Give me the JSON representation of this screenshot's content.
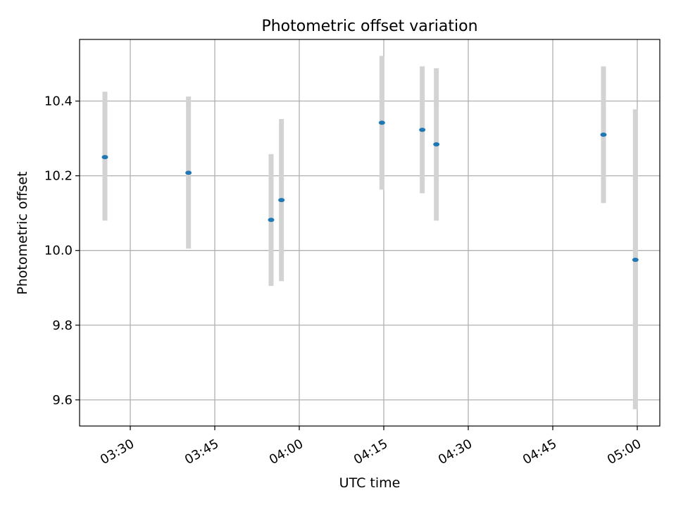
{
  "chart_data": {
    "type": "scatter",
    "title": "Photometric offset variation",
    "xlabel": "UTC time",
    "ylabel": "Photometric offset",
    "x_type": "time",
    "xlim": [
      "03:21",
      "05:04"
    ],
    "ylim": [
      9.53,
      10.565
    ],
    "grid": true,
    "x_ticks": [
      "03:30",
      "03:45",
      "04:00",
      "04:15",
      "04:30",
      "04:45",
      "05:00"
    ],
    "y_ticks": [
      9.6,
      9.8,
      10.0,
      10.2,
      10.4
    ],
    "y_tick_labels": [
      "9.6",
      "9.8",
      "10.0",
      "10.2",
      "10.4"
    ],
    "points": [
      {
        "time": "03:25:30",
        "y": 10.25,
        "err_low": 10.08,
        "err_high": 10.425
      },
      {
        "time": "03:40:20",
        "y": 10.208,
        "err_low": 10.005,
        "err_high": 10.412
      },
      {
        "time": "03:55:00",
        "y": 10.082,
        "err_low": 9.905,
        "err_high": 10.258
      },
      {
        "time": "03:56:50",
        "y": 10.135,
        "err_low": 9.918,
        "err_high": 10.352
      },
      {
        "time": "04:14:40",
        "y": 10.342,
        "err_low": 10.163,
        "err_high": 10.521
      },
      {
        "time": "04:21:50",
        "y": 10.323,
        "err_low": 10.153,
        "err_high": 10.493
      },
      {
        "time": "04:24:20",
        "y": 10.284,
        "err_low": 10.08,
        "err_high": 10.488
      },
      {
        "time": "04:54:00",
        "y": 10.31,
        "err_low": 10.127,
        "err_high": 10.493
      },
      {
        "time": "04:59:40",
        "y": 9.975,
        "err_low": 9.575,
        "err_high": 10.378
      }
    ],
    "colors": {
      "point": "#1f77b4",
      "errorbar": "#d3d3d3",
      "grid": "#b0b0b0",
      "axes": "#000000"
    }
  }
}
